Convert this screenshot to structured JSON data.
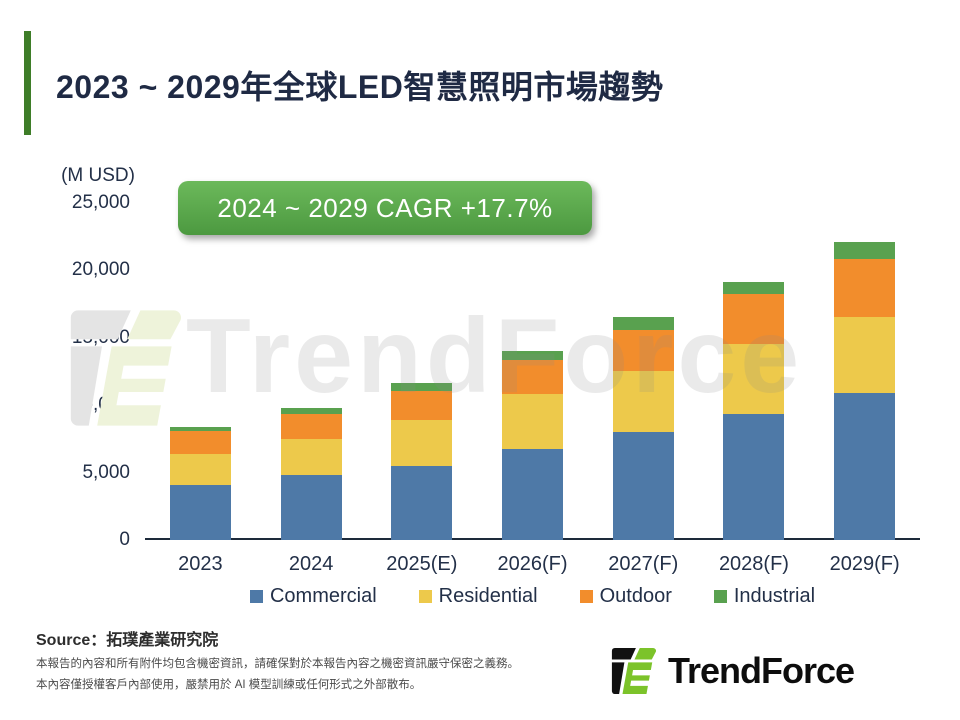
{
  "slide": {
    "title": "2023 ~ 2029年全球LED智慧照明市場趨勢",
    "unit_label": "(M USD)",
    "badge_label": "2024 ~ 2029 CAGR +17.7%",
    "source_label": "Source：拓璞產業研究院",
    "disclaimer_line1": "本報告的內容和所有附件均包含機密資訊，請確保對於本報告內容之機密資訊嚴守保密之義務。",
    "disclaimer_line2": "本內容僅授權客戶內部使用，嚴禁用於 AI 模型訓練或任何形式之外部散布。",
    "watermark_text": "TrendForce",
    "logo_text": "TrendForce"
  },
  "colors": {
    "accent_green": "#3E7D28",
    "badge_green_top": "#6CB95B",
    "badge_green_bottom": "#4C9940",
    "title_navy": "#1F2A44",
    "axis_navy": "#233048",
    "logo_green": "#7CC32A",
    "commercial_blue": "#4E79A7",
    "residential_yellow": "#EDC94B",
    "outdoor_orange": "#F28D2C",
    "industrial_green": "#59A14F"
  },
  "chart_data": {
    "type": "bar",
    "stacked": true,
    "title": "2023 ~ 2029年全球LED智慧照明市場趨勢",
    "unit": "M USD",
    "annotation": "2024 ~ 2029 CAGR +17.7%",
    "categories": [
      "2023",
      "2024",
      "2025(E)",
      "2026(F)",
      "2027(F)",
      "2028(F)",
      "2029(F)"
    ],
    "series": [
      {
        "name": "Commercial",
        "color": "#4E79A7",
        "values": [
          4100,
          4800,
          5500,
          6750,
          8000,
          9350,
          10900
        ]
      },
      {
        "name": "Residential",
        "color": "#EDC94B",
        "values": [
          2300,
          2700,
          3400,
          4050,
          4500,
          5150,
          5650
        ]
      },
      {
        "name": "Outdoor",
        "color": "#F28D2C",
        "values": [
          1700,
          1800,
          2150,
          2550,
          3050,
          3700,
          4250
        ]
      },
      {
        "name": "Industrial",
        "color": "#59A14F",
        "values": [
          300,
          450,
          600,
          650,
          1000,
          950,
          1300
        ]
      }
    ],
    "ylim": [
      0,
      25000
    ],
    "yticks": [
      0,
      5000,
      10000,
      15000,
      20000,
      25000
    ],
    "ytick_labels": [
      "0",
      "5,000",
      "10,000",
      "15,000",
      "20,000",
      "25,000"
    ],
    "ylabel": "(M USD)",
    "grid": false,
    "legend_position": "bottom"
  }
}
